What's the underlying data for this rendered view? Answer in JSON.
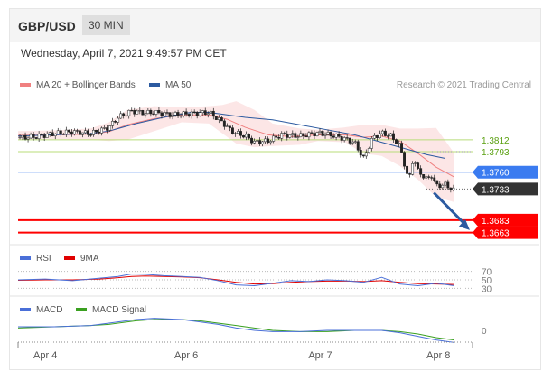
{
  "header": {
    "symbol": "GBP/USD",
    "timeframe": "30 MIN"
  },
  "datetime": "Wednesday, April 7, 2021 9:49:57 PM CET",
  "credit": "Research © 2021 Trading Central",
  "colors": {
    "bollinger": "#f08080",
    "ma50": "#2c5aa0",
    "rsi": "#4a6fd8",
    "rsi_ma": "#e00000",
    "macd": "#4a6fd8",
    "macd_signal": "#3aa020",
    "support": "#ff0000",
    "pivot": "#3a7bf0",
    "resistance": "#8cc63f",
    "last": "#333333"
  },
  "chart_data": [
    {
      "type": "line",
      "panel": "price",
      "legend": [
        {
          "name": "MA 20 + Bollinger Bands",
          "color": "#f08080"
        },
        {
          "name": "MA 50",
          "color": "#2c5aa0"
        }
      ],
      "x_ticks": [
        "Apr 4",
        "Apr 6",
        "Apr 7",
        "Apr 8"
      ],
      "x_range": [
        0,
        100
      ],
      "x_tick_positions": [
        6,
        37,
        66.5,
        92.5
      ],
      "ylim": [
        1.3648,
        1.3877
      ],
      "levels": [
        {
          "label": "1.3812",
          "value": 1.3812,
          "kind": "resistance"
        },
        {
          "label": "1.3793",
          "value": 1.3793,
          "kind": "resistance"
        },
        {
          "label": "1.3760",
          "value": 1.376,
          "kind": "pivot"
        },
        {
          "label": "1.3733",
          "value": 1.3733,
          "kind": "last"
        },
        {
          "label": "1.3683",
          "value": 1.3683,
          "kind": "support"
        },
        {
          "label": "1.3663",
          "value": 1.3663,
          "kind": "support"
        }
      ],
      "series": [
        {
          "name": "Price",
          "x": [
            0,
            4,
            8,
            12,
            16,
            20,
            22,
            25,
            28,
            30,
            34,
            38,
            42,
            45,
            47,
            50,
            52,
            55,
            58,
            62,
            66,
            70,
            74,
            76,
            78,
            80,
            82,
            84,
            86,
            87,
            88,
            90,
            91,
            92,
            94,
            96
          ],
          "y": [
            1.3815,
            1.3817,
            1.3822,
            1.3825,
            1.3822,
            1.3832,
            1.3848,
            1.3858,
            1.3855,
            1.3856,
            1.3852,
            1.3854,
            1.3856,
            1.384,
            1.3825,
            1.3818,
            1.3808,
            1.381,
            1.382,
            1.3818,
            1.3823,
            1.3818,
            1.3808,
            1.3782,
            1.3815,
            1.3823,
            1.3818,
            1.3802,
            1.3745,
            1.3785,
            1.3762,
            1.3748,
            1.3755,
            1.3738,
            1.374,
            1.373
          ]
        },
        {
          "name": "MA 20",
          "x": [
            0,
            8,
            16,
            20,
            24,
            30,
            36,
            42,
            46,
            50,
            55,
            60,
            66,
            72,
            76,
            80,
            84,
            88,
            92,
            96
          ],
          "y": [
            1.3819,
            1.382,
            1.3821,
            1.3825,
            1.3836,
            1.3846,
            1.3852,
            1.3852,
            1.3845,
            1.3832,
            1.382,
            1.3817,
            1.382,
            1.382,
            1.3816,
            1.3818,
            1.381,
            1.379,
            1.3768,
            1.3752
          ]
        },
        {
          "name": "Bollinger Upper",
          "x": [
            0,
            8,
            16,
            20,
            24,
            30,
            36,
            42,
            45,
            48,
            52,
            56,
            62,
            66,
            72,
            76,
            80,
            84,
            88,
            92,
            96
          ],
          "y": [
            1.3826,
            1.3827,
            1.383,
            1.384,
            1.386,
            1.3866,
            1.3864,
            1.3866,
            1.3868,
            1.3874,
            1.386,
            1.3838,
            1.383,
            1.3828,
            1.3832,
            1.3836,
            1.3836,
            1.383,
            1.383,
            1.3831,
            1.379
          ]
        },
        {
          "name": "Bollinger Lower",
          "x": [
            0,
            8,
            16,
            20,
            24,
            30,
            36,
            42,
            45,
            48,
            52,
            56,
            62,
            66,
            72,
            76,
            80,
            84,
            88,
            92,
            96
          ],
          "y": [
            1.3812,
            1.3813,
            1.3812,
            1.381,
            1.3812,
            1.3826,
            1.384,
            1.3838,
            1.3822,
            1.3806,
            1.38,
            1.3802,
            1.3804,
            1.381,
            1.3808,
            1.379,
            1.3786,
            1.377,
            1.3748,
            1.372,
            1.3712
          ]
        },
        {
          "name": "MA 50",
          "x": [
            0,
            8,
            16,
            20,
            26,
            32,
            38,
            42,
            46,
            50,
            56,
            62,
            68,
            74,
            80,
            86,
            90,
            94
          ],
          "y": [
            1.3818,
            1.382,
            1.3822,
            1.3826,
            1.3838,
            1.3848,
            1.3856,
            1.3856,
            1.3852,
            1.3848,
            1.3844,
            1.3836,
            1.3828,
            1.382,
            1.3808,
            1.3796,
            1.3788,
            1.3782
          ]
        }
      ]
    },
    {
      "type": "line",
      "panel": "rsi",
      "legend": [
        {
          "name": "RSI",
          "color": "#4a6fd8"
        },
        {
          "name": "9MA",
          "color": "#e00000"
        }
      ],
      "x_range": [
        0,
        100
      ],
      "ylim": [
        20,
        80
      ],
      "y_ticks": [
        70,
        50,
        30
      ],
      "series": [
        {
          "name": "RSI",
          "x": [
            0,
            6,
            12,
            18,
            22,
            25,
            28,
            32,
            36,
            40,
            44,
            48,
            52,
            56,
            60,
            64,
            68,
            72,
            76,
            80,
            84,
            88,
            92,
            96
          ],
          "y": [
            50,
            52,
            48,
            54,
            58,
            64,
            63,
            60,
            58,
            56,
            48,
            38,
            36,
            42,
            48,
            46,
            50,
            48,
            44,
            56,
            40,
            36,
            42,
            36
          ]
        },
        {
          "name": "9MA",
          "x": [
            0,
            6,
            12,
            18,
            22,
            25,
            28,
            32,
            36,
            40,
            44,
            48,
            52,
            56,
            60,
            64,
            68,
            72,
            76,
            80,
            84,
            88,
            92,
            96
          ],
          "y": [
            49,
            50,
            50,
            52,
            55,
            58,
            59,
            58,
            57,
            55,
            50,
            44,
            40,
            41,
            44,
            46,
            47,
            47,
            46,
            48,
            44,
            41,
            40,
            39
          ]
        }
      ]
    },
    {
      "type": "line",
      "panel": "macd",
      "legend": [
        {
          "name": "MACD",
          "color": "#4a6fd8"
        },
        {
          "name": "MACD Signal",
          "color": "#3aa020"
        }
      ],
      "x_range": [
        0,
        100
      ],
      "ylim": [
        -0.0012,
        0.0012
      ],
      "y_ticks": [
        0
      ],
      "y_tick_labels": [
        "0"
      ],
      "series": [
        {
          "name": "MACD",
          "x": [
            0,
            8,
            16,
            20,
            26,
            30,
            36,
            40,
            44,
            48,
            52,
            56,
            62,
            68,
            74,
            80,
            84,
            88,
            92,
            96
          ],
          "y": [
            0.0003,
            0.0003,
            0.0004,
            0.0006,
            0.0009,
            0.001,
            0.0009,
            0.0007,
            0.0005,
            0.0002,
            0.0,
            -0.0001,
            -0.0001,
            0.0,
            0.0,
            0.0,
            -0.0002,
            -0.0005,
            -0.0008,
            -0.001
          ]
        },
        {
          "name": "MACD Signal",
          "x": [
            0,
            8,
            16,
            20,
            26,
            30,
            36,
            40,
            44,
            48,
            52,
            56,
            62,
            68,
            74,
            80,
            84,
            88,
            92,
            96
          ],
          "y": [
            0.0002,
            0.0003,
            0.0004,
            0.0005,
            0.0008,
            0.0009,
            0.0009,
            0.0008,
            0.0006,
            0.0004,
            0.0002,
            0.0,
            -0.0001,
            -0.0001,
            0.0,
            0.0,
            -0.0001,
            -0.0003,
            -0.0006,
            -0.0008
          ]
        }
      ]
    }
  ]
}
